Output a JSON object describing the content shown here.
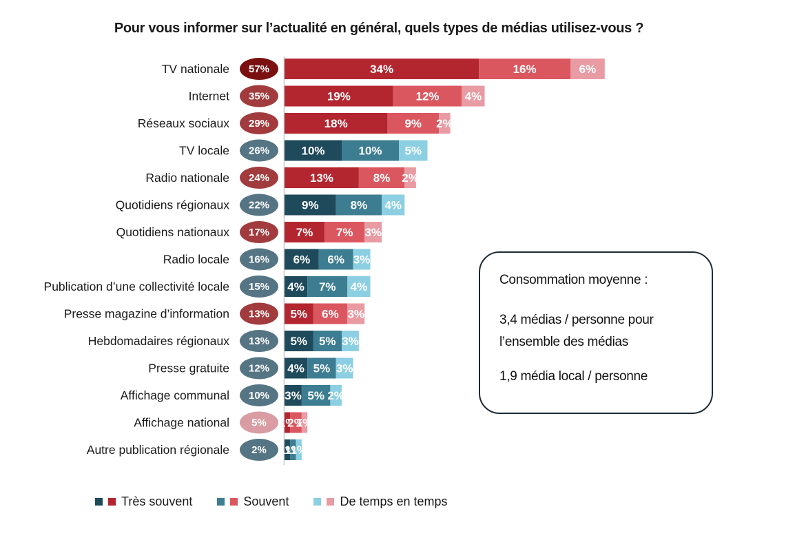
{
  "chart_data": {
    "type": "bar",
    "orientation": "horizontal",
    "stacked": true,
    "title": "Pour vous informer sur l’actualité en général, quels types de médias utilisez-vous ?",
    "categories": [
      "TV nationale",
      "Internet",
      "Réseaux sociaux",
      "TV locale",
      "Radio nationale",
      "Quotidiens régionaux",
      "Quotidiens nationaux",
      "Radio locale",
      "Publication d’une collectivité locale",
      "Presse magazine d’information",
      "Hebdomadaires régionaux",
      "Presse gratuite",
      "Affichage communal",
      "Affichage national",
      "Autre publication régionale"
    ],
    "totals": [
      57,
      35,
      29,
      26,
      24,
      22,
      17,
      16,
      15,
      13,
      13,
      12,
      10,
      5,
      2
    ],
    "total_labels": [
      "57%",
      "35%",
      "29%",
      "26%",
      "24%",
      "22%",
      "17%",
      "16%",
      "15%",
      "13%",
      "13%",
      "12%",
      "10%",
      "5%",
      "2%"
    ],
    "category_group": [
      "national",
      "national",
      "national",
      "local",
      "national",
      "local",
      "national",
      "local",
      "local",
      "national",
      "local",
      "local",
      "local",
      "national",
      "local"
    ],
    "series": [
      {
        "name": "Très souvent",
        "values": [
          34,
          19,
          18,
          10,
          13,
          9,
          7,
          6,
          4,
          5,
          5,
          4,
          3,
          1,
          1
        ],
        "labels": [
          "34%",
          "19%",
          "18%",
          "10%",
          "13%",
          "9%",
          "7%",
          "6%",
          "4%",
          "5%",
          "5%",
          "4%",
          "3%",
          "1%",
          "1%"
        ]
      },
      {
        "name": "Souvent",
        "values": [
          16,
          12,
          9,
          10,
          8,
          8,
          7,
          6,
          7,
          6,
          5,
          5,
          5,
          2,
          1
        ],
        "labels": [
          "16%",
          "12%",
          "9%",
          "10%",
          "8%",
          "8%",
          "7%",
          "6%",
          "7%",
          "6%",
          "5%",
          "5%",
          "5%",
          "2%",
          "1%"
        ]
      },
      {
        "name": "De temps en temps",
        "values": [
          6,
          4,
          2,
          5,
          2,
          4,
          3,
          3,
          4,
          3,
          3,
          3,
          2,
          1,
          1
        ],
        "labels": [
          "6%",
          "4%",
          "2%",
          "5%",
          "2%",
          "4%",
          "3%",
          "3%",
          "4%",
          "3%",
          "3%",
          "3%",
          "2%",
          "1%",
          "1%"
        ]
      }
    ],
    "colors": {
      "national": [
        "#b3262f",
        "#db5760",
        "#e99ba3"
      ],
      "local": [
        "#1f4a5b",
        "#3d7d92",
        "#8dcfe2"
      ],
      "national_total": "#a23b3d",
      "local_total": "#567584",
      "top_total": "#7a1010",
      "small_total": "#d89ca2",
      "axis": "#c8c8c8"
    },
    "legend": {
      "position": "bottom",
      "items": [
        {
          "label": "Très souvent",
          "colors": [
            "#1f4a5b",
            "#b3262f"
          ]
        },
        {
          "label": "Souvent",
          "colors": [
            "#3d7d92",
            "#db5760"
          ]
        },
        {
          "label": "De temps en temps",
          "colors": [
            "#8dcfe2",
            "#e99ba3"
          ]
        }
      ]
    }
  },
  "info_box": {
    "title": "Consommation moyenne :",
    "line1": "3,4 médias / personne pour",
    "line2": "l’ensemble des médias",
    "line3": "1,9 média local / personne"
  }
}
